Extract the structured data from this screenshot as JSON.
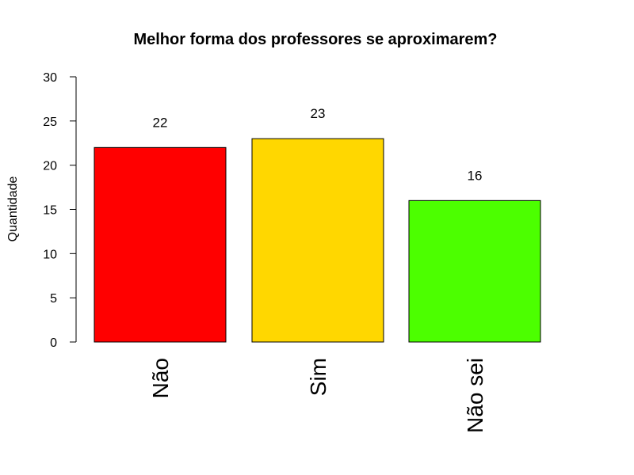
{
  "chart_data": {
    "type": "bar",
    "title": "Melhor forma dos professores se aproximarem?",
    "xlabel": "",
    "ylabel": "Quantidade",
    "categories": [
      "Não",
      "Sim",
      "Não sei"
    ],
    "values": [
      22,
      23,
      16
    ],
    "colors": [
      "#ff0000",
      "#ffd700",
      "#4cff00"
    ],
    "ylim": [
      0,
      30
    ],
    "yticks": [
      0,
      5,
      10,
      15,
      20,
      25,
      30
    ],
    "data_labels": [
      "22",
      "23",
      "16"
    ],
    "grid": false,
    "legend": "none"
  }
}
